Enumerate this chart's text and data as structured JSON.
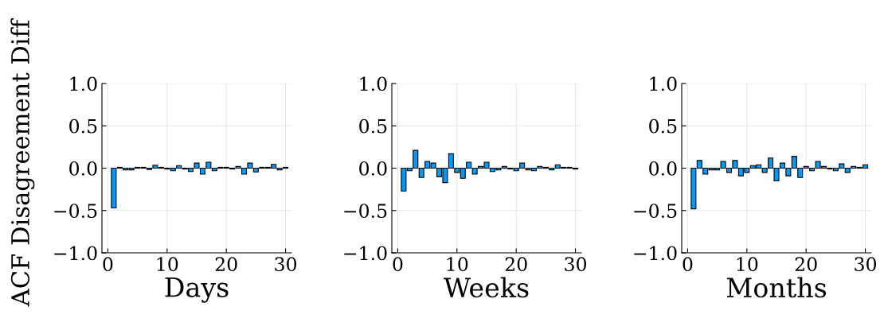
{
  "chart_data": [
    {
      "type": "bar",
      "xlabel": "Days",
      "ylabel": "ACF Disagreement Diff",
      "x": [
        1,
        2,
        3,
        4,
        5,
        6,
        7,
        8,
        9,
        10,
        11,
        12,
        13,
        14,
        15,
        16,
        17,
        18,
        19,
        20,
        21,
        22,
        23,
        24,
        25,
        26,
        27,
        28,
        29,
        30
      ],
      "series": [
        {
          "color": "#009af9",
          "values": [
            -0.47,
            0.01,
            -0.02,
            -0.02,
            0.01,
            0.01,
            -0.015,
            0.035,
            0.01,
            -0.01,
            -0.03,
            0.03,
            -0.01,
            -0.04,
            0.06,
            -0.07,
            0.07,
            -0.03,
            0.01,
            0.01,
            -0.01,
            0.02,
            -0.07,
            0.06,
            -0.045,
            0.01,
            0.01,
            0.045,
            -0.02,
            0.01
          ]
        }
      ],
      "xlim": [
        -1,
        31
      ],
      "xticks": [
        0,
        10,
        20,
        30
      ],
      "ylim": [
        -1,
        1
      ],
      "yticks": [
        {
          "value": -1,
          "label": "−1.0"
        },
        {
          "value": -0.5,
          "label": "−0.5"
        },
        {
          "value": 0,
          "label": "0.0"
        },
        {
          "value": 0.5,
          "label": "0.5"
        },
        {
          "value": 1,
          "label": "1.0"
        }
      ],
      "grid": true,
      "legend": false
    },
    {
      "type": "bar",
      "xlabel": "Weeks",
      "x": [
        1,
        2,
        3,
        4,
        5,
        6,
        7,
        8,
        9,
        10,
        11,
        12,
        13,
        14,
        15,
        16,
        17,
        18,
        19,
        20,
        21,
        22,
        23,
        24,
        25,
        26,
        27,
        28,
        29,
        30
      ],
      "series": [
        {
          "color": "#009af9",
          "values": [
            -0.27,
            -0.03,
            0.21,
            -0.11,
            0.08,
            0.06,
            -0.1,
            -0.17,
            0.17,
            -0.05,
            -0.12,
            0.07,
            -0.07,
            0.02,
            0.07,
            -0.04,
            -0.02,
            0.02,
            -0.01,
            -0.03,
            0.06,
            -0.02,
            -0.03,
            0.02,
            0.01,
            -0.02,
            0.04,
            0.01,
            0.01,
            -0.01
          ]
        }
      ],
      "xlim": [
        -1,
        31
      ],
      "xticks": [
        0,
        10,
        20,
        30
      ],
      "ylim": [
        -1,
        1
      ],
      "yticks": [
        {
          "value": -1,
          "label": "−1.0"
        },
        {
          "value": -0.5,
          "label": "−0.5"
        },
        {
          "value": 0,
          "label": "0.0"
        },
        {
          "value": 0.5,
          "label": "0.5"
        },
        {
          "value": 1,
          "label": "1.0"
        }
      ],
      "grid": true,
      "legend": false
    },
    {
      "type": "bar",
      "xlabel": "Months",
      "x": [
        1,
        2,
        3,
        4,
        5,
        6,
        7,
        8,
        9,
        10,
        11,
        12,
        13,
        14,
        15,
        16,
        17,
        18,
        19,
        20,
        21,
        22,
        23,
        24,
        25,
        26,
        27,
        28,
        29,
        30
      ],
      "series": [
        {
          "color": "#009af9",
          "values": [
            -0.48,
            0.09,
            -0.07,
            -0.02,
            -0.02,
            0.08,
            -0.05,
            0.09,
            -0.09,
            -0.05,
            0.03,
            0.04,
            -0.05,
            0.12,
            -0.15,
            0.06,
            -0.09,
            0.14,
            -0.11,
            0.02,
            -0.03,
            0.08,
            0.02,
            -0.01,
            -0.03,
            0.05,
            -0.05,
            0.02,
            0.01,
            0.04
          ]
        }
      ],
      "xlim": [
        -1,
        31
      ],
      "xticks": [
        0,
        10,
        20,
        30
      ],
      "ylim": [
        -1,
        1
      ],
      "yticks": [
        {
          "value": -1,
          "label": "−1.0"
        },
        {
          "value": -0.5,
          "label": "−0.5"
        },
        {
          "value": 0,
          "label": "0.0"
        },
        {
          "value": 0.5,
          "label": "0.5"
        },
        {
          "value": 1,
          "label": "1.0"
        }
      ],
      "grid": true,
      "legend": false
    }
  ]
}
